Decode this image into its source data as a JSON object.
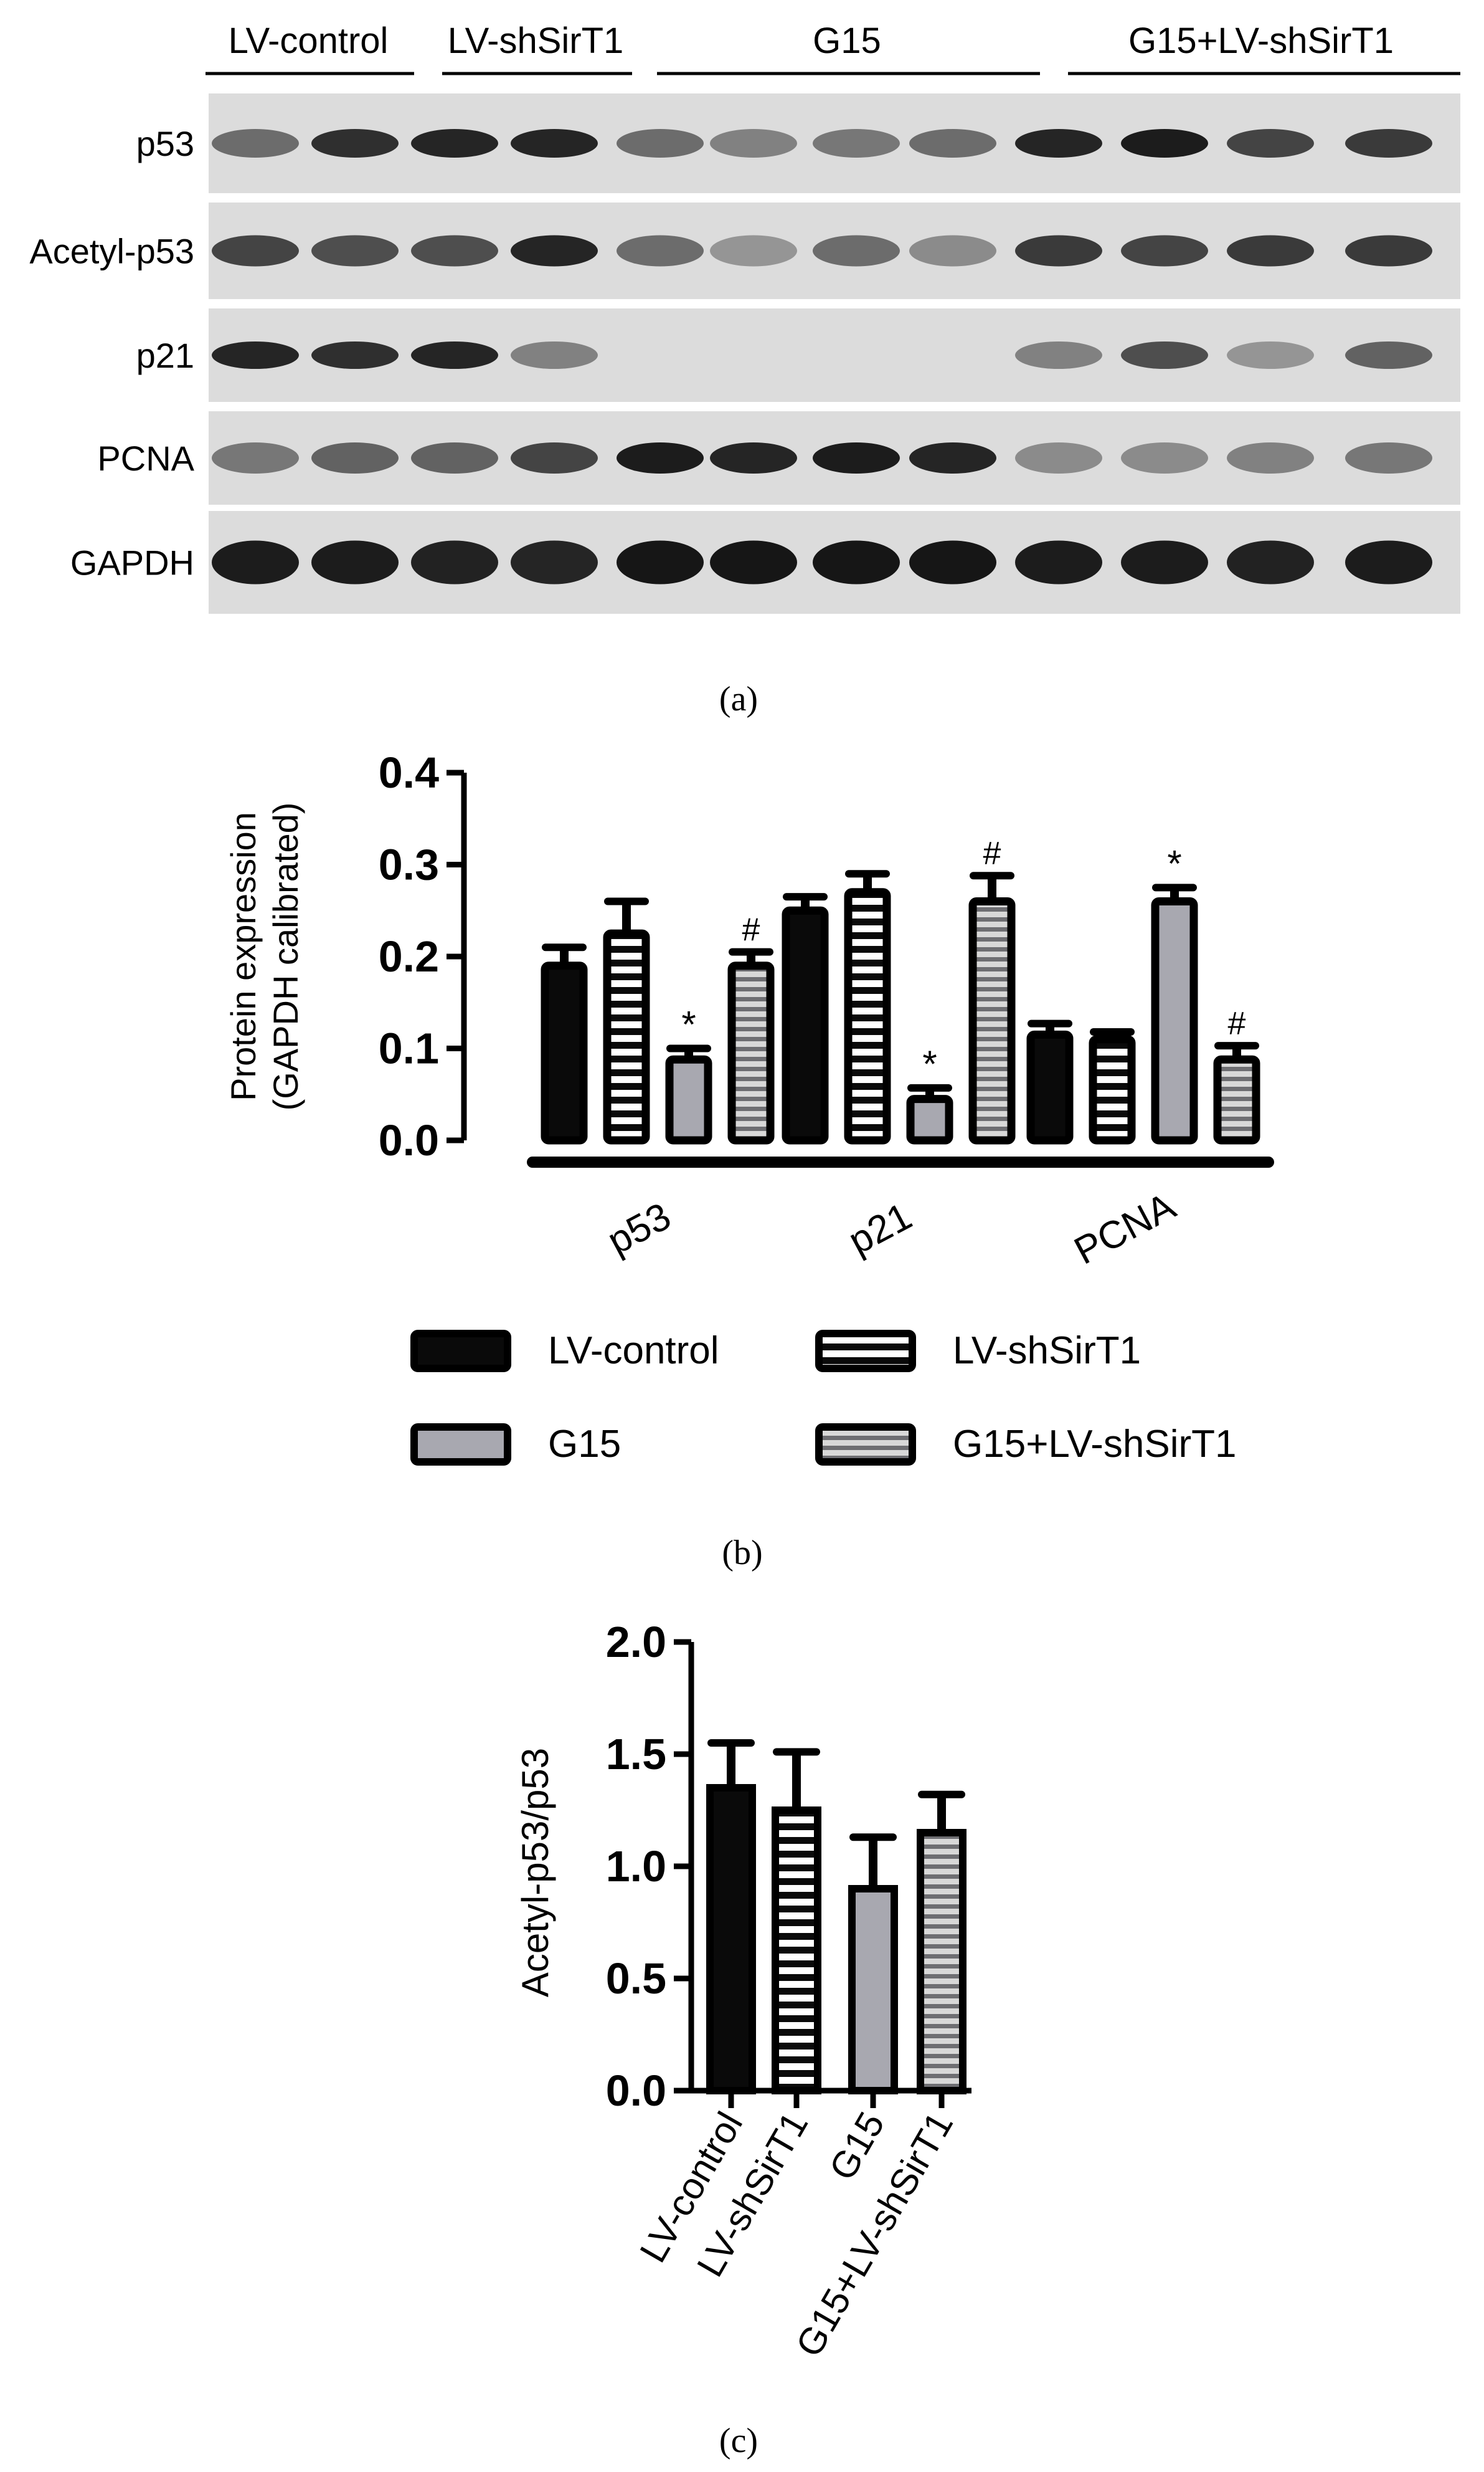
{
  "panel_labels": {
    "a": "(a)",
    "b": "(b)",
    "c": "(c)"
  },
  "blot": {
    "groups": [
      "LV-control",
      "LV-shSirT1",
      "G15",
      "G15+LV-shSirT1"
    ],
    "rows": [
      "p53",
      "Acetyl-p53",
      "p21",
      "PCNA",
      "GAPDH"
    ]
  },
  "chart_data": [
    {
      "type": "bar",
      "panel": "b",
      "categories": [
        "p53",
        "p21",
        "PCNA"
      ],
      "ylabel": [
        "Protein expression",
        "(GAPDH calibrated)"
      ],
      "ylim": [
        0,
        0.4
      ],
      "yticks": [
        "0.0",
        "0.1",
        "0.2",
        "0.3",
        "0.4"
      ],
      "series": [
        {
          "name": "LV-control",
          "values": [
            0.19,
            0.25,
            0.115
          ],
          "errors": [
            0.02,
            0.015,
            0.012
          ],
          "annotations": [
            "",
            "",
            ""
          ]
        },
        {
          "name": "LV-shSirT1",
          "values": [
            0.225,
            0.27,
            0.11
          ],
          "errors": [
            0.035,
            0.02,
            0.008
          ],
          "annotations": [
            "",
            "",
            ""
          ]
        },
        {
          "name": "G15",
          "values": [
            0.088,
            0.045,
            0.26
          ],
          "errors": [
            0.012,
            0.012,
            0.015
          ],
          "annotations": [
            "*",
            "*",
            "*"
          ]
        },
        {
          "name": "G15+LV-shSirT1",
          "values": [
            0.19,
            0.26,
            0.088
          ],
          "errors": [
            0.015,
            0.028,
            0.015
          ],
          "annotations": [
            "#",
            "#",
            "#"
          ]
        }
      ],
      "legend_position": "bottom",
      "grid": false
    },
    {
      "type": "bar",
      "panel": "c",
      "categories": [
        "LV-control",
        "LV-shSirT1",
        "G15",
        "G15+LV-shSirT1"
      ],
      "ylabel": "Acetyl-p53/p53",
      "ylim": [
        0,
        2.0
      ],
      "yticks": [
        "0.0",
        "0.5",
        "1.0",
        "1.5",
        "2.0"
      ],
      "values": [
        1.35,
        1.25,
        0.9,
        1.15
      ],
      "errors": [
        0.2,
        0.26,
        0.23,
        0.17
      ],
      "grid": false
    }
  ],
  "colors": {
    "black": "#0a0a0a",
    "gray": "#a8a8b0",
    "white": "#ffffff",
    "membrane": "#dcdcdc"
  }
}
